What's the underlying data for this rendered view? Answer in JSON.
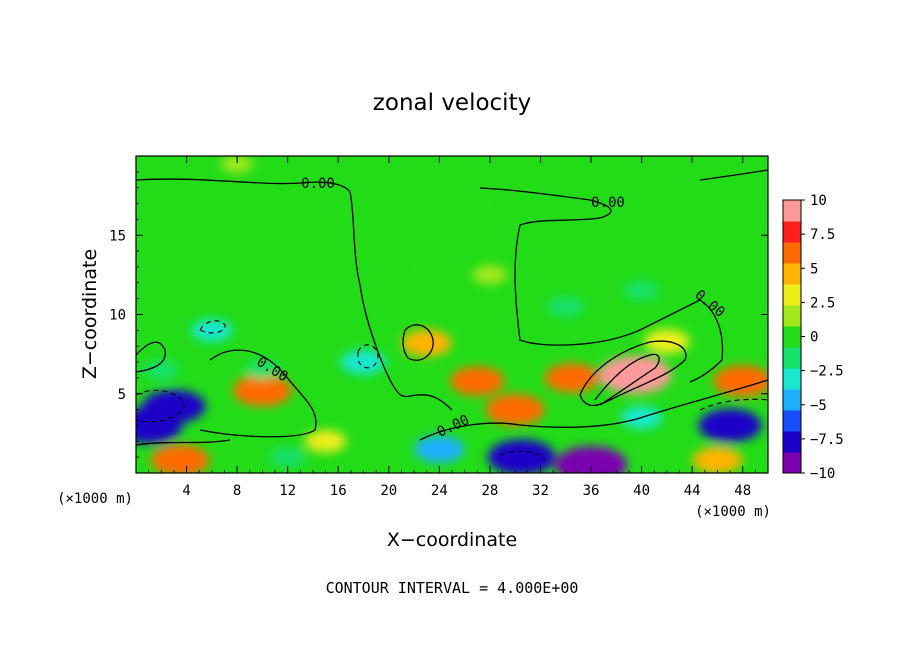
{
  "chart_data": {
    "type": "heatmap",
    "title": "zonal velocity",
    "xlabel": "X−coordinate",
    "ylabel": "Z−coordinate",
    "x_unit_left": "(×1000 m)",
    "x_unit_right": "(×1000 m)",
    "xlim": [
      0,
      50
    ],
    "ylim": [
      0,
      20
    ],
    "xticks": [
      4,
      8,
      12,
      16,
      20,
      24,
      28,
      32,
      36,
      40,
      44,
      48
    ],
    "xtick_labels": [
      "4",
      "8",
      "12",
      "16",
      "20",
      "24",
      "28",
      "32",
      "36",
      "40",
      "44",
      "48"
    ],
    "yticks": [
      5,
      10,
      15
    ],
    "ytick_labels": [
      "5",
      "10",
      "15"
    ],
    "colorbar": {
      "min": -10,
      "max": 10,
      "ticks": [
        10,
        7.5,
        5,
        2.5,
        0,
        -2.5,
        -5,
        -7.5,
        -10
      ],
      "tick_labels": [
        "10",
        "7.5",
        "5",
        "2.5",
        "0",
        "−2.5",
        "−5",
        "−7.5",
        "−10"
      ],
      "colors": [
        "#7a00b0",
        "#1a00c8",
        "#1a4cff",
        "#1ab0ff",
        "#19e8d0",
        "#14e06a",
        "#22dc18",
        "#a2e81a",
        "#eeee1a",
        "#ffb400",
        "#ff6a00",
        "#ff1e1e",
        "#ff9a9a"
      ]
    },
    "contour_interval_text": "CONTOUR INTERVAL = 4.000E+00",
    "contour_labels": [
      "0.00",
      "0.00",
      "0.00",
      "0.00",
      "0.00"
    ],
    "features": [
      {
        "x": 39.5,
        "z": 6.2,
        "value": 10
      },
      {
        "x": 10,
        "z": 5.2,
        "value": 7
      },
      {
        "x": 23,
        "z": 8.2,
        "value": 5
      },
      {
        "x": 30,
        "z": 4.0,
        "value": 7
      },
      {
        "x": 48,
        "z": 5.8,
        "value": 7
      },
      {
        "x": 27,
        "z": 5.8,
        "value": 6
      },
      {
        "x": 34.5,
        "z": 6.0,
        "value": 6
      },
      {
        "x": 42,
        "z": 8.3,
        "value": 4
      },
      {
        "x": 3.5,
        "z": 0.8,
        "value": 7
      },
      {
        "x": 46,
        "z": 0.8,
        "value": 5
      },
      {
        "x": 15,
        "z": 2.0,
        "value": 3
      },
      {
        "x": 28,
        "z": 12.5,
        "value": 1.5
      },
      {
        "x": 3,
        "z": 4.2,
        "value": -8
      },
      {
        "x": 1.0,
        "z": 3.0,
        "value": -9
      },
      {
        "x": 47,
        "z": 3.0,
        "value": -8
      },
      {
        "x": 36,
        "z": 0.5,
        "value": -10
      },
      {
        "x": 30.5,
        "z": 1.0,
        "value": -9
      },
      {
        "x": 24,
        "z": 1.5,
        "value": -5
      },
      {
        "x": 18,
        "z": 7.0,
        "value": -4
      },
      {
        "x": 6,
        "z": 9.0,
        "value": -3
      },
      {
        "x": 34,
        "z": 10.5,
        "value": -2
      },
      {
        "x": 40,
        "z": 11.5,
        "value": -1.5
      },
      {
        "x": 10,
        "z": 6.5,
        "value": -1.5
      },
      {
        "x": 2,
        "z": 6.5,
        "value": -2
      },
      {
        "x": 8,
        "z": 19.5,
        "value": 1
      },
      {
        "x": 30,
        "z": 17,
        "value": -0.5
      },
      {
        "x": 7,
        "z": 14,
        "value": -0.7
      },
      {
        "x": 20,
        "z": 13,
        "value": -0.5
      },
      {
        "x": 40,
        "z": 3.5,
        "value": -3
      },
      {
        "x": 12,
        "z": 1.0,
        "value": -2
      }
    ]
  }
}
